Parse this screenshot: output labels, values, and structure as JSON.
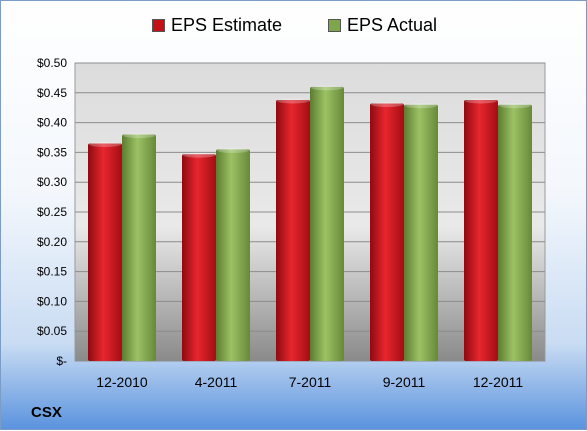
{
  "chart_data": {
    "type": "bar",
    "title": "",
    "xlabel": "",
    "ylabel": "",
    "categories": [
      "12-2010",
      "4-2011",
      "7-2011",
      "9-2011",
      "12-2011"
    ],
    "series": [
      {
        "name": "EPS Estimate",
        "color": "#c40f17",
        "values": [
          0.365,
          0.347,
          0.438,
          0.432,
          0.438
        ]
      },
      {
        "name": "EPS Actual",
        "color": "#7ea64a",
        "values": [
          0.38,
          0.355,
          0.46,
          0.43,
          0.43
        ]
      }
    ],
    "ylim": [
      0,
      0.5
    ],
    "yticks": [
      0,
      0.05,
      0.1,
      0.15,
      0.2,
      0.25,
      0.3,
      0.35,
      0.4,
      0.45,
      0.5
    ],
    "ytick_labels": [
      "$-",
      "$0.05",
      "$0.10",
      "$0.15",
      "$0.20",
      "$0.25",
      "$0.30",
      "$0.35",
      "$0.40",
      "$0.45",
      "$0.50"
    ],
    "grid": true,
    "legend_position": "top-center"
  },
  "footer": {
    "ticker": "CSX"
  }
}
